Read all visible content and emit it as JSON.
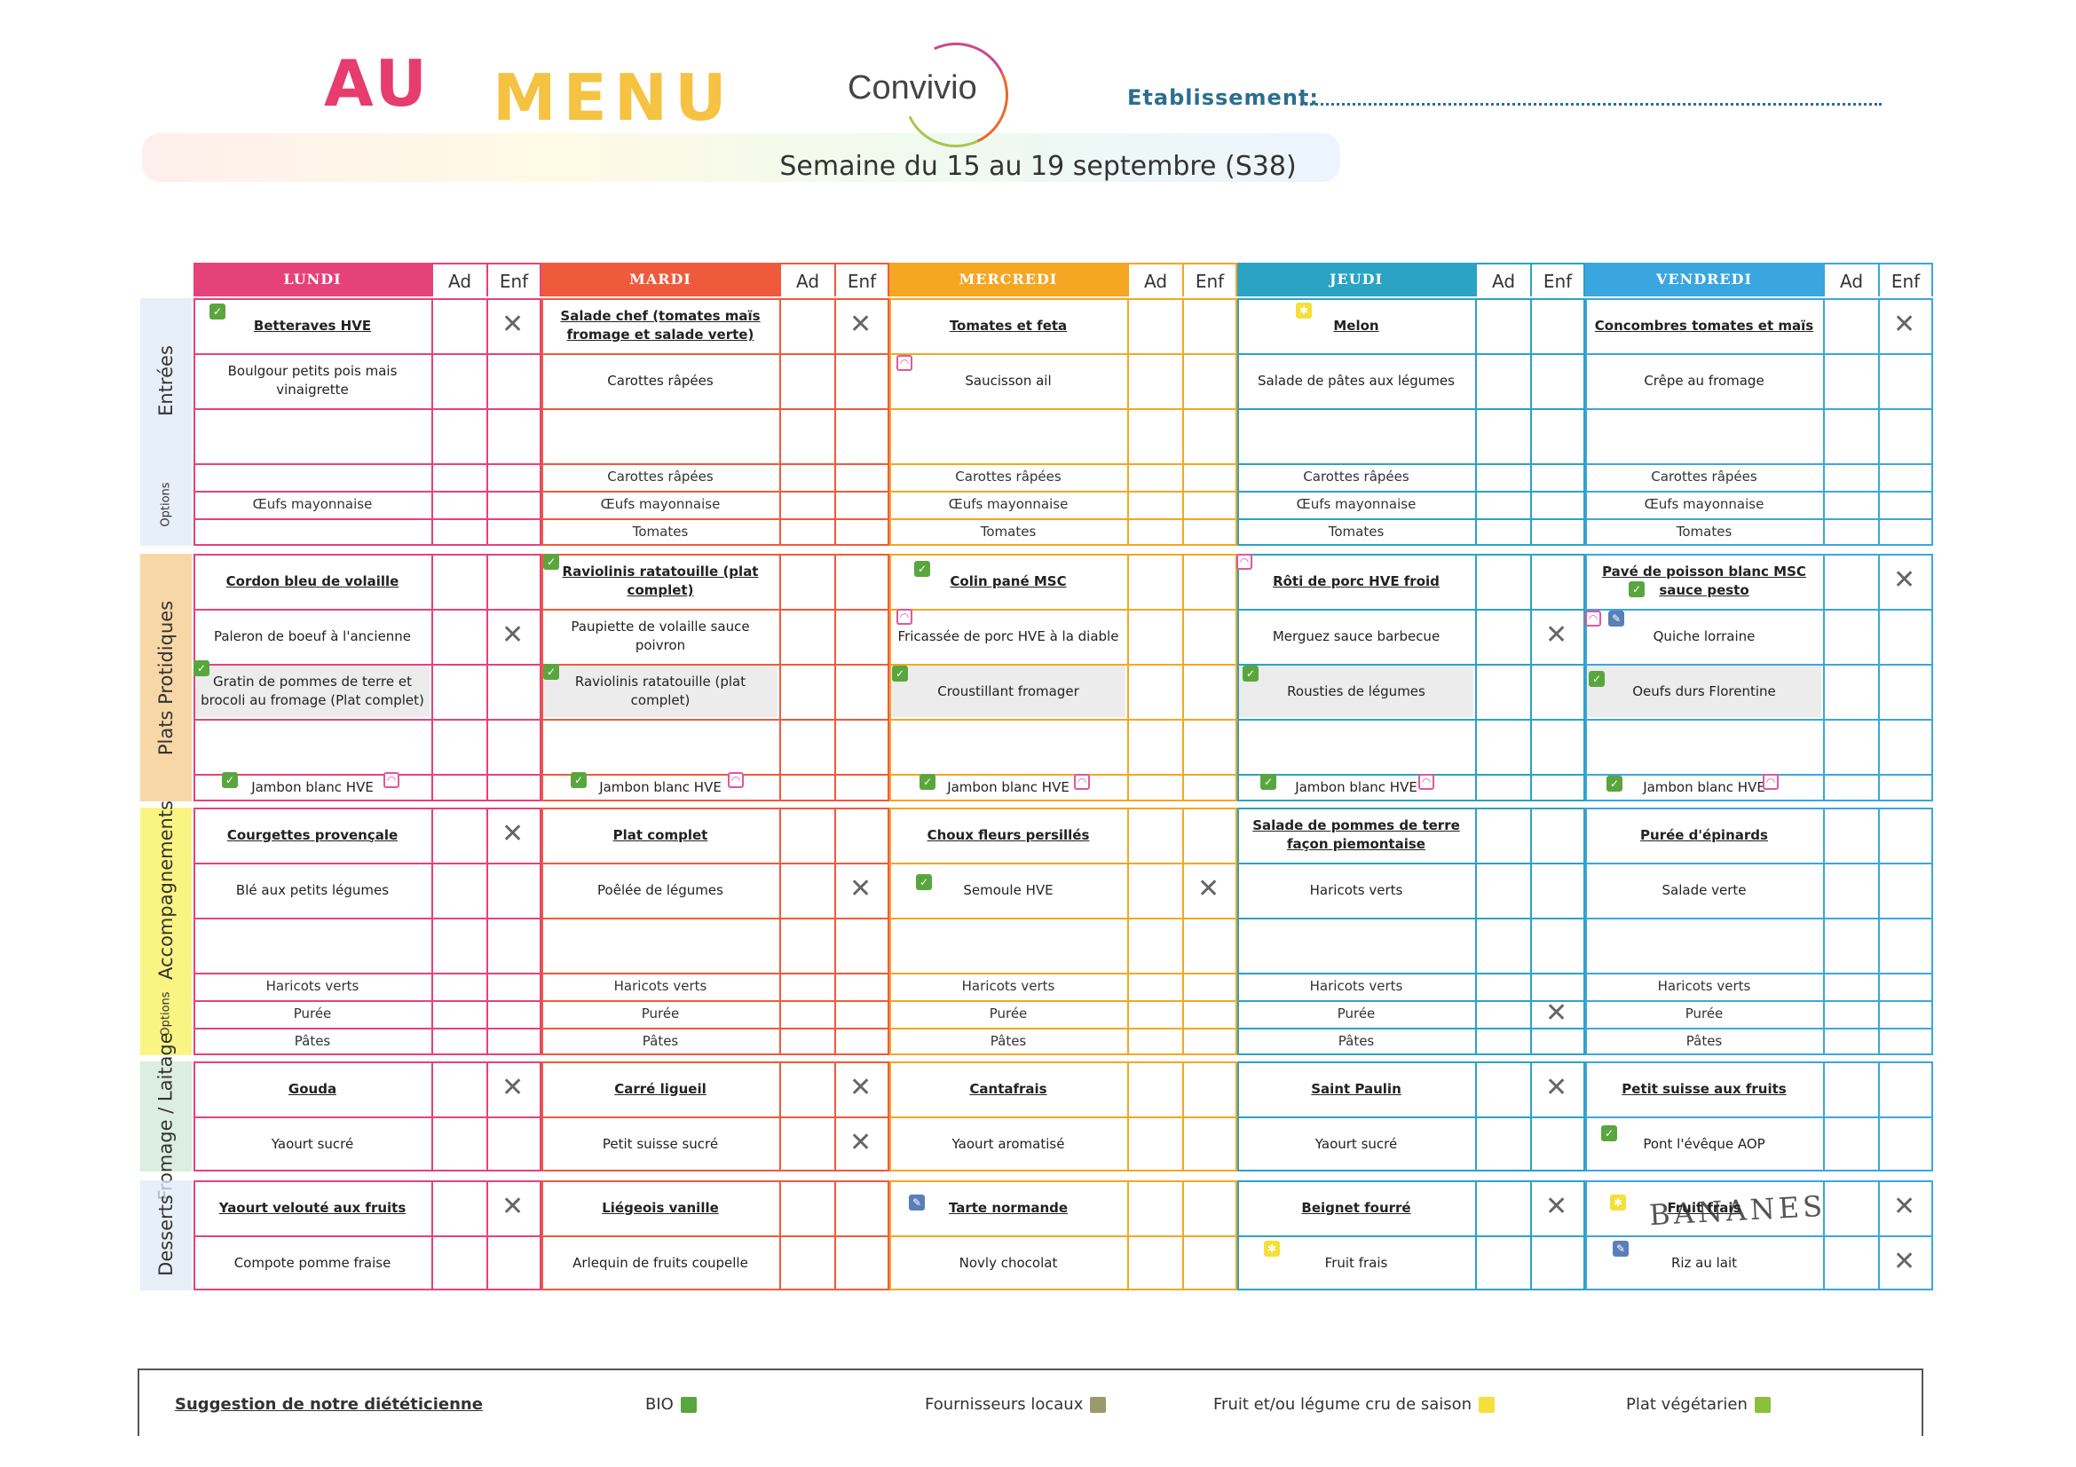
{
  "header": {
    "title_au": "AU",
    "title_menu": "MENU",
    "brand": "Convivio",
    "establishment_label": "Etablissement:",
    "week": "Semaine du 15 au 19 septembre (S38)"
  },
  "columns": {
    "ad": "Ad",
    "enf": "Enf"
  },
  "days": [
    {
      "name": "LUNDI",
      "color": "#e6427a"
    },
    {
      "name": "MARDI",
      "color": "#ef5a3c"
    },
    {
      "name": "MERCREDI",
      "color": "#f5a623"
    },
    {
      "name": "JEUDI",
      "color": "#2aa3c4"
    },
    {
      "name": "VENDREDI",
      "color": "#3aa6e0"
    }
  ],
  "sections": [
    {
      "name": "Entrées",
      "sub": "Options",
      "color": "#dfe9f5"
    },
    {
      "name": "Plats Protidiques",
      "color": "#f6c98a"
    },
    {
      "name": "Accompagnements",
      "sub": "Options",
      "color": "#f8f25a"
    },
    {
      "name": "Fromage / Laitage",
      "color": "#cfe8d4"
    },
    {
      "name": "Desserts",
      "color": "#dfe9f5"
    }
  ],
  "menu": {
    "entrees": [
      [
        "Betteraves HVE",
        "Boulgour petits pois mais vinaigrette",
        "",
        "",
        "Œufs mayonnaise",
        ""
      ],
      [
        "Salade chef (tomates maïs fromage et salade verte)",
        "Carottes râpées",
        "",
        "Carottes râpées",
        "Œufs mayonnaise",
        "Tomates"
      ],
      [
        "Tomates et feta",
        "Saucisson ail",
        "",
        "Carottes râpées",
        "Œufs mayonnaise",
        "Tomates"
      ],
      [
        "Melon",
        "Salade de pâtes aux légumes",
        "",
        "Carottes râpées",
        "Œufs mayonnaise",
        "Tomates"
      ],
      [
        "Concombres tomates et maïs",
        "Crêpe au fromage",
        "",
        "Carottes râpées",
        "Œufs mayonnaise",
        "Tomates"
      ]
    ],
    "plats": [
      [
        "Cordon bleu de volaille",
        "Paleron de boeuf à l'ancienne",
        "Gratin de pommes de terre et brocoli au fromage (Plat complet)",
        "",
        "Jambon blanc HVE"
      ],
      [
        "Raviolinis ratatouille (plat complet)",
        "Paupiette de volaille sauce poivron",
        "Raviolinis ratatouille (plat complet)",
        "",
        "Jambon blanc HVE"
      ],
      [
        "Colin pané MSC",
        "Fricassée de porc HVE à la diable",
        "Croustillant fromager",
        "",
        "Jambon blanc HVE"
      ],
      [
        "Rôti de porc HVE froid",
        "Merguez sauce barbecue",
        "Rousties de légumes",
        "",
        "Jambon blanc HVE"
      ],
      [
        "Pavé de poisson blanc MSC sauce pesto",
        "Quiche lorraine",
        "Oeufs durs Florentine",
        "",
        "Jambon blanc HVE"
      ]
    ],
    "accomp": [
      [
        "Courgettes provençale",
        "Blé aux petits légumes",
        "",
        "Haricots verts",
        "Purée",
        "Pâtes"
      ],
      [
        "Plat complet",
        "Poêlée de légumes",
        "",
        "Haricots verts",
        "Purée",
        "Pâtes"
      ],
      [
        "Choux fleurs persillés",
        "Semoule HVE",
        "",
        "Haricots verts",
        "Purée",
        "Pâtes"
      ],
      [
        "Salade de pommes de terre façon piemontaise",
        "Haricots verts",
        "",
        "Haricots verts",
        "Purée",
        "Pâtes"
      ],
      [
        "Purée d'épinards",
        "Salade verte",
        "",
        "Haricots verts",
        "Purée",
        "Pâtes"
      ]
    ],
    "fromage": [
      [
        "Gouda",
        "Yaourt sucré"
      ],
      [
        "Carré ligueil",
        "Petit suisse sucré"
      ],
      [
        "Cantafrais",
        "Yaourt aromatisé"
      ],
      [
        "Saint Paulin",
        "Yaourt sucré"
      ],
      [
        "Petit suisse aux fruits",
        "Pont l'évêque AOP"
      ]
    ],
    "desserts": [
      [
        "Yaourt velouté aux fruits",
        "Compote pomme fraise"
      ],
      [
        "Liégeois vanille",
        "Arlequin de fruits coupelle"
      ],
      [
        "Tarte normande",
        "Novly chocolat"
      ],
      [
        "Beignet fourré",
        "Fruit frais"
      ],
      [
        "Fruit frais",
        "Riz au lait"
      ]
    ]
  },
  "handwritten": "BANANES",
  "legend": {
    "suggestion": "Suggestion de notre diététicienne",
    "bio": "BIO",
    "local": "Fournisseurs locaux",
    "season": "Fruit et/ou légume cru de saison",
    "veg": "Plat végétarien"
  }
}
